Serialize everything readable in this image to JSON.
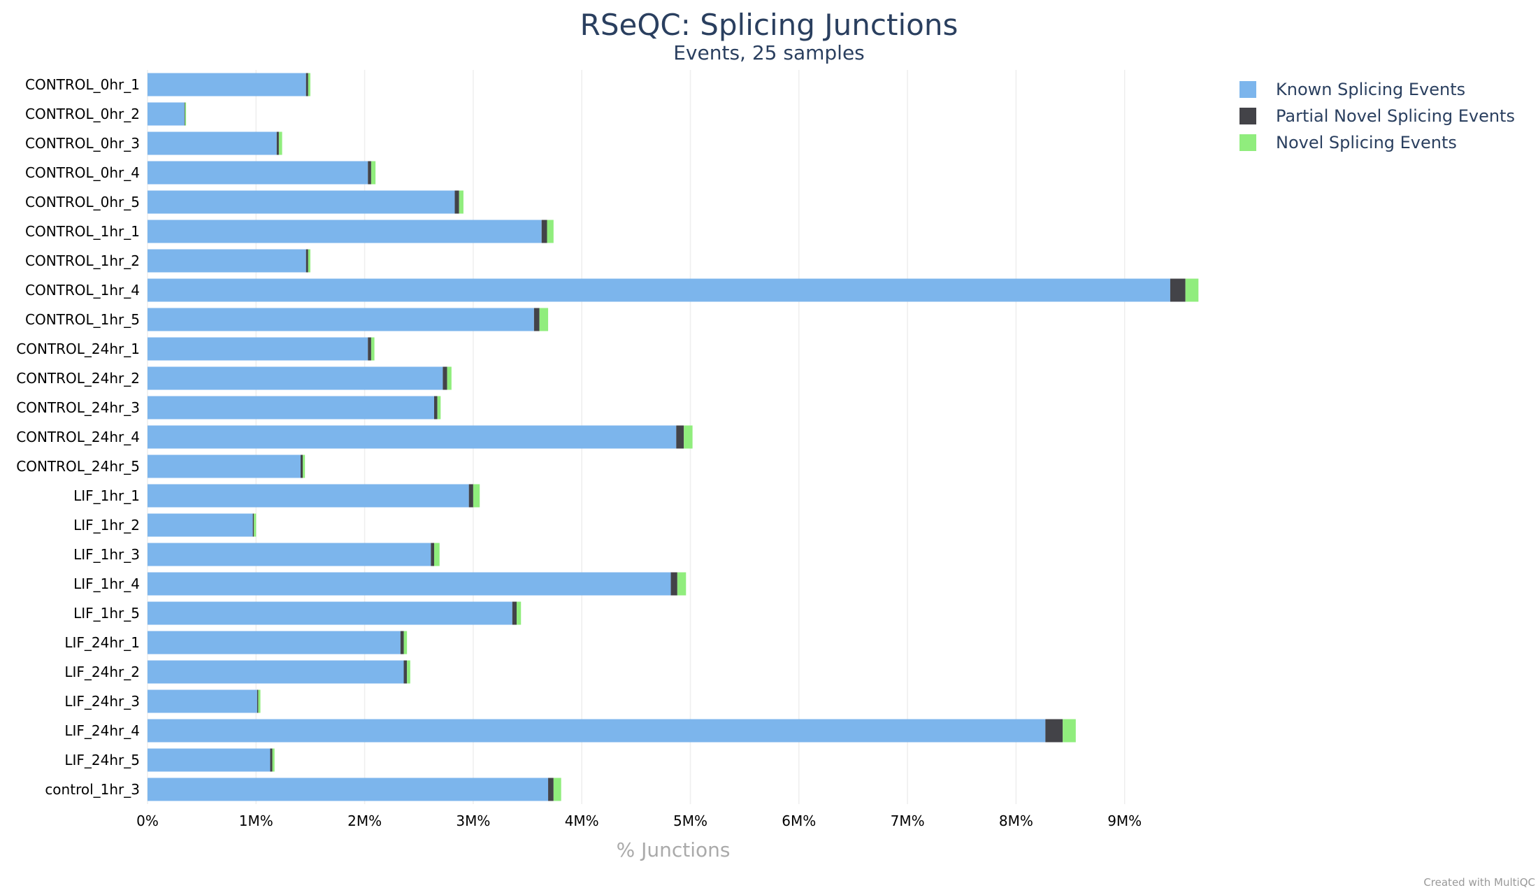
{
  "chart_data": {
    "type": "bar",
    "orientation": "horizontal",
    "stacked": true,
    "title": "RSeQC: Splicing Junctions",
    "subtitle": "Events, 25 samples",
    "xlabel": "% Junctions",
    "credit": "Created with MultiQC",
    "xlim": [
      0,
      9.7
    ],
    "xticks": [
      0,
      1,
      2,
      3,
      4,
      5,
      6,
      7,
      8,
      9
    ],
    "xtick_labels": [
      "0%",
      "1M%",
      "2M%",
      "3M%",
      "4M%",
      "5M%",
      "6M%",
      "7M%",
      "8M%",
      "9M%"
    ],
    "grid": true,
    "legend_position": "top-right",
    "categories": [
      "CONTROL_0hr_1",
      "CONTROL_0hr_2",
      "CONTROL_0hr_3",
      "CONTROL_0hr_4",
      "CONTROL_0hr_5",
      "CONTROL_1hr_1",
      "CONTROL_1hr_2",
      "CONTROL_1hr_4",
      "CONTROL_1hr_5",
      "CONTROL_24hr_1",
      "CONTROL_24hr_2",
      "CONTROL_24hr_3",
      "CONTROL_24hr_4",
      "CONTROL_24hr_5",
      "LIF_1hr_1",
      "LIF_1hr_2",
      "LIF_1hr_3",
      "LIF_1hr_4",
      "LIF_1hr_5",
      "LIF_24hr_1",
      "LIF_24hr_2",
      "LIF_24hr_3",
      "LIF_24hr_4",
      "LIF_24hr_5",
      "control_1hr_3"
    ],
    "series": [
      {
        "name": "Known Splicing Events",
        "color": "#7cb5ec",
        "values": [
          1.46,
          0.34,
          1.19,
          2.03,
          2.83,
          3.63,
          1.46,
          9.42,
          3.56,
          2.03,
          2.72,
          2.64,
          4.87,
          1.41,
          2.96,
          0.97,
          2.61,
          4.82,
          3.36,
          2.33,
          2.36,
          1.01,
          8.27,
          1.13,
          3.69
        ]
      },
      {
        "name": "Partial Novel Splicing Events",
        "color": "#434348",
        "values": [
          0.02,
          0.005,
          0.02,
          0.03,
          0.04,
          0.05,
          0.02,
          0.14,
          0.05,
          0.03,
          0.04,
          0.03,
          0.07,
          0.02,
          0.04,
          0.01,
          0.03,
          0.06,
          0.04,
          0.03,
          0.03,
          0.01,
          0.16,
          0.02,
          0.05
        ]
      },
      {
        "name": "Novel Splicing Events",
        "color": "#90ed7d",
        "values": [
          0.02,
          0.01,
          0.03,
          0.04,
          0.04,
          0.06,
          0.02,
          0.12,
          0.08,
          0.03,
          0.04,
          0.03,
          0.08,
          0.02,
          0.06,
          0.02,
          0.05,
          0.08,
          0.04,
          0.03,
          0.03,
          0.02,
          0.12,
          0.02,
          0.07
        ]
      }
    ]
  }
}
